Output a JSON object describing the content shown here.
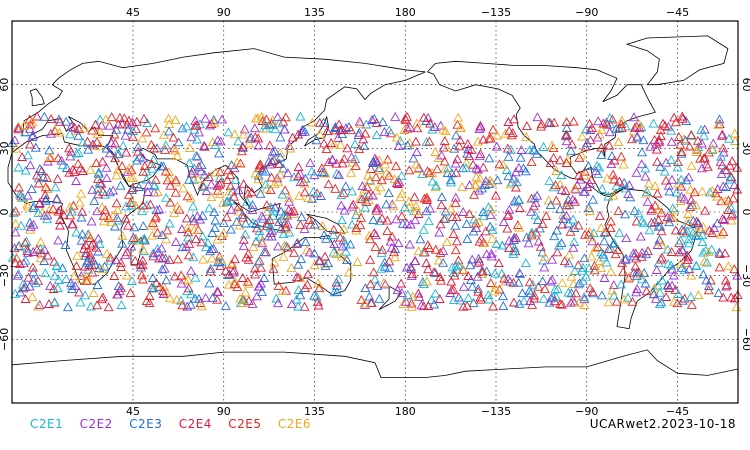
{
  "map": {
    "lon_range": [
      -15,
      345
    ],
    "lat_range": [
      -90,
      90
    ],
    "lon_ticks": [
      {
        "lon": 45,
        "label": "45"
      },
      {
        "lon": 90,
        "label": "90"
      },
      {
        "lon": 135,
        "label": "135"
      },
      {
        "lon": 180,
        "label": "180"
      },
      {
        "lon": 225,
        "label": "−135"
      },
      {
        "lon": 270,
        "label": "−90"
      },
      {
        "lon": 315,
        "label": "−45"
      }
    ],
    "lat_ticks": [
      {
        "lat": 60,
        "label": "60"
      },
      {
        "lat": 30,
        "label": "30"
      },
      {
        "lat": 0,
        "label": "0"
      },
      {
        "lat": -30,
        "label": "−30"
      },
      {
        "lat": -60,
        "label": "−60"
      }
    ],
    "observation_band_lat": [
      -45,
      45
    ],
    "observation_count_per_series": 320
  },
  "legend": {
    "items": [
      {
        "label": "C2E1",
        "color": "#17b6d6"
      },
      {
        "label": "C2E2",
        "color": "#9b30d9"
      },
      {
        "label": "C2E3",
        "color": "#1e6fdc"
      },
      {
        "label": "C2E4",
        "color": "#dd1a3c"
      },
      {
        "label": "C2E5",
        "color": "#e8231c"
      },
      {
        "label": "C2E6",
        "color": "#f2a81d"
      }
    ]
  },
  "caption": {
    "text": "UCARwet2.2023-10-18"
  }
}
